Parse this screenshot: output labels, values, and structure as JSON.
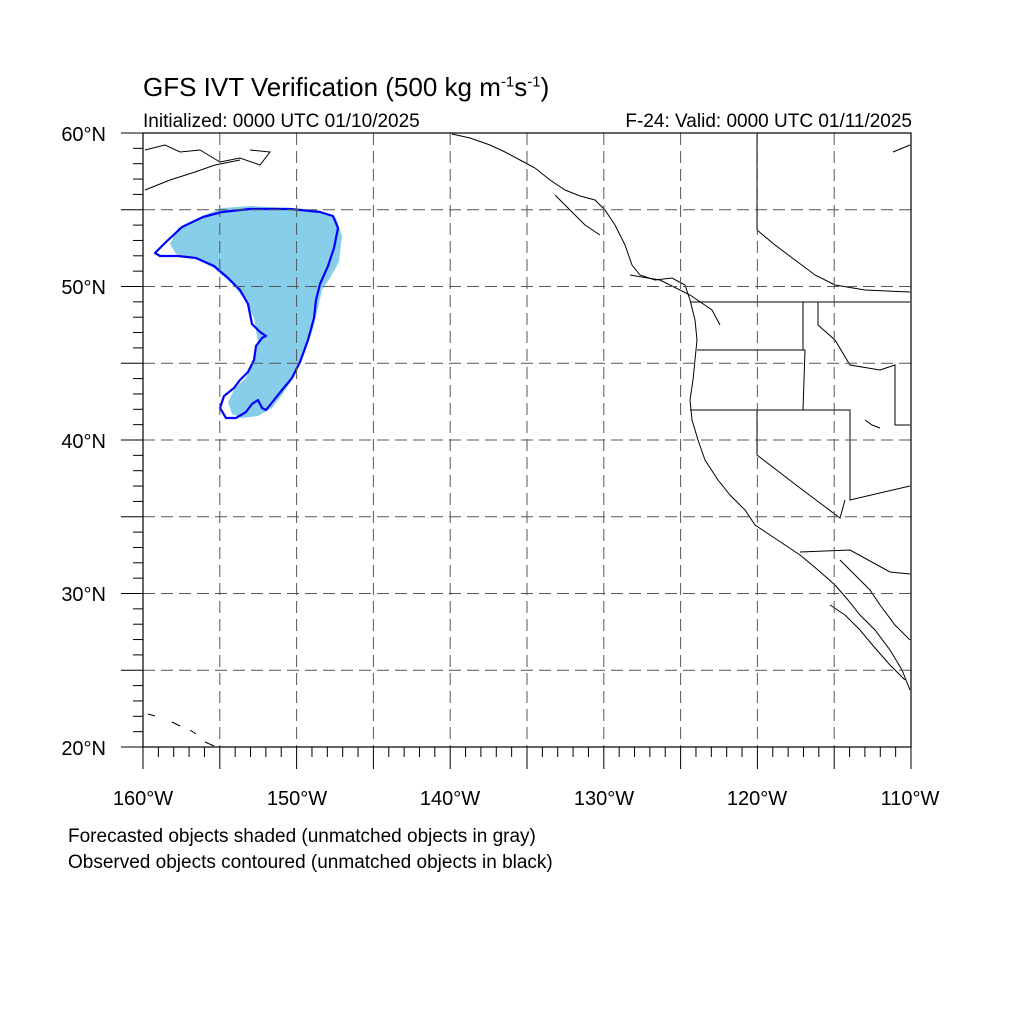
{
  "header": {
    "title_main": "GFS IVT Verification (500 kg m",
    "title_sup1": "-1",
    "title_mid": "s",
    "title_sup2": "-1",
    "title_end": ")",
    "initialized": "Initialized: 0000 UTC 01/10/2025",
    "valid": "F-24: Valid: 0000 UTC 01/11/2025"
  },
  "map": {
    "projection": "cylindrical equidistant",
    "lon_range": [
      -160,
      -110
    ],
    "lat_range": [
      20,
      60
    ],
    "gridlines": "dashed every 5 degrees",
    "lat_labels": [
      "60°N",
      "50°N",
      "40°N",
      "30°N",
      "20°N"
    ],
    "lon_labels": [
      "160°W",
      "150°W",
      "140°W",
      "130°W",
      "120°W",
      "110°W"
    ],
    "colors": {
      "forecast_fill": "#87ceeb",
      "observed_contour": "#0000ff",
      "coastline": "#000000",
      "grid": "#555555"
    }
  },
  "legend": {
    "line1": "Forecasted objects shaded (unmatched objects in gray)",
    "line2": "Observed objects contoured (unmatched objects in black)"
  }
}
